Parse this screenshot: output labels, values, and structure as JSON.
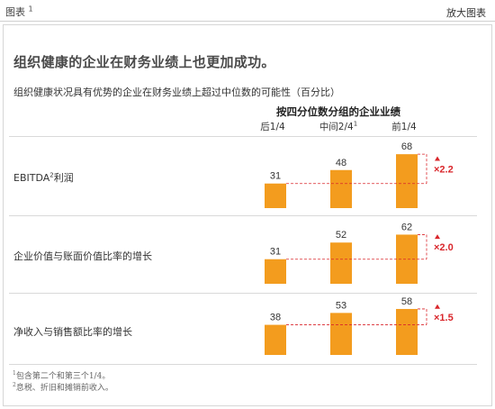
{
  "header": {
    "figure_label": "图表",
    "figure_number": "1",
    "expand_link": "放大图表"
  },
  "title": "组织健康的企业在财务业绩上也更加成功。",
  "subtitle": "组织健康状况具有优势的企业在财务业绩上超过中位数的可能性（百分比）",
  "column_group_header": "按四分位数分组的企业业绩",
  "columns": [
    {
      "label": "后1/4",
      "sup": ""
    },
    {
      "label": "中间2/4",
      "sup": "1"
    },
    {
      "label": "前1/4",
      "sup": ""
    }
  ],
  "rows": [
    {
      "label": "EBITDA",
      "label_sup": "2",
      "label_tail": "利润"
    },
    {
      "label": "企业价值与账面价值比率的增长",
      "label_sup": "",
      "label_tail": ""
    },
    {
      "label": "净收入与销售额比率的增长",
      "label_sup": "",
      "label_tail": ""
    }
  ],
  "footnotes": [
    {
      "sup": "1",
      "text": "包含第二个和第三个1/4。"
    },
    {
      "sup": "2",
      "text": "息税、折旧和摊销前收入。"
    }
  ],
  "colors": {
    "bar": "#f39c1e",
    "multiplier": "#d9262b",
    "rule": "#d9d9d9"
  },
  "chart_data": {
    "type": "bar",
    "categories": [
      "后1/4",
      "中间2/4",
      "前1/4"
    ],
    "series": [
      {
        "name": "EBITDA利润",
        "values": [
          31,
          48,
          68
        ],
        "multiplier": "×2.2"
      },
      {
        "name": "企业价值与账面价值比率的增长",
        "values": [
          31,
          52,
          62
        ],
        "multiplier": "×2.0"
      },
      {
        "name": "净收入与销售额比率的增长",
        "values": [
          38,
          53,
          58
        ],
        "multiplier": "×1.5"
      }
    ]
  }
}
